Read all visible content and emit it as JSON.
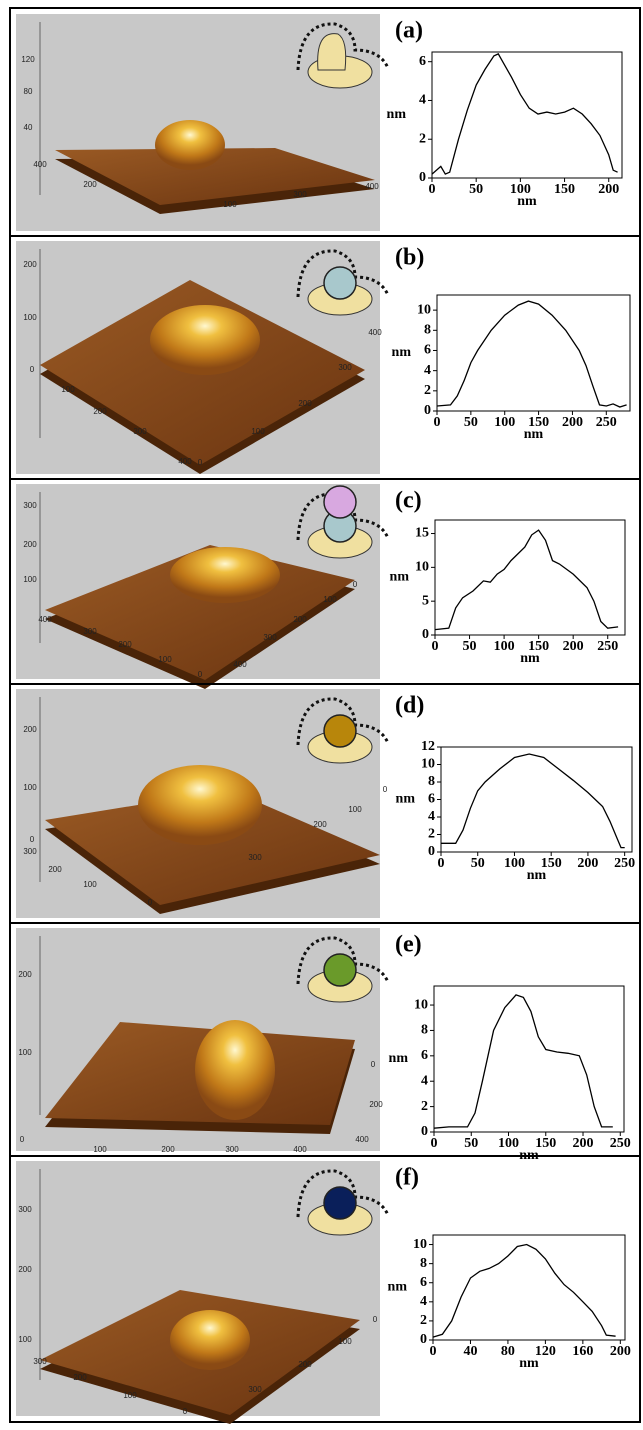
{
  "chart_data": [
    {
      "type": "line",
      "label": "(a)",
      "x_label": "nm",
      "y_label": "nm",
      "color": "#000000",
      "x": [
        0,
        10,
        15,
        20,
        30,
        40,
        50,
        60,
        70,
        75,
        80,
        90,
        100,
        110,
        120,
        130,
        140,
        150,
        160,
        170,
        180,
        190,
        200,
        205,
        210
      ],
      "values": [
        0.2,
        0.6,
        0.2,
        0.3,
        2,
        3.5,
        4.8,
        5.6,
        6.3,
        6.4,
        6.0,
        5.2,
        4.3,
        3.6,
        3.3,
        3.4,
        3.3,
        3.4,
        3.6,
        3.3,
        2.8,
        2.2,
        1.2,
        0.4,
        0.3
      ],
      "xlim": [
        0,
        215
      ],
      "ylim": [
        0,
        6.5
      ],
      "xticks": [
        0,
        50,
        100,
        150,
        200
      ],
      "yticks": [
        0,
        2,
        4,
        6
      ]
    },
    {
      "type": "line",
      "label": "(b)",
      "x_label": "nm",
      "y_label": "nm",
      "color": "#000000",
      "x": [
        0,
        20,
        30,
        40,
        50,
        60,
        80,
        100,
        120,
        135,
        150,
        170,
        190,
        210,
        220,
        230,
        240,
        250,
        260,
        270,
        280
      ],
      "values": [
        0.5,
        0.6,
        1.5,
        3,
        4.8,
        6,
        8,
        9.5,
        10.5,
        10.9,
        10.6,
        9.5,
        8,
        6,
        4.5,
        2.5,
        0.6,
        0.5,
        0.7,
        0.4,
        0.6
      ],
      "xlim": [
        0,
        285
      ],
      "ylim": [
        0,
        11.5
      ],
      "xticks": [
        0,
        50,
        100,
        150,
        200,
        250
      ],
      "yticks": [
        0,
        2,
        4,
        6,
        8,
        10
      ]
    },
    {
      "type": "line",
      "label": "(c)",
      "x_label": "nm",
      "y_label": "nm",
      "color": "#000000",
      "x": [
        0,
        20,
        30,
        40,
        55,
        70,
        80,
        90,
        100,
        110,
        130,
        140,
        150,
        160,
        170,
        180,
        200,
        220,
        230,
        240,
        250,
        265
      ],
      "values": [
        0.8,
        1,
        4,
        5.5,
        6.5,
        8,
        7.8,
        9,
        9.7,
        11,
        13,
        14.8,
        15.5,
        14,
        11,
        10.5,
        9,
        7,
        5,
        2,
        1,
        1.2
      ],
      "xlim": [
        0,
        275
      ],
      "ylim": [
        0,
        17
      ],
      "xticks": [
        0,
        50,
        100,
        150,
        200,
        250
      ],
      "yticks": [
        0,
        5,
        10,
        15
      ]
    },
    {
      "type": "line",
      "label": "(d)",
      "x_label": "nm",
      "y_label": "nm",
      "color": "#000000",
      "x": [
        0,
        20,
        30,
        40,
        50,
        60,
        80,
        100,
        120,
        140,
        160,
        180,
        200,
        220,
        230,
        240,
        245,
        250
      ],
      "values": [
        1,
        1,
        2.5,
        5,
        7,
        8,
        9.5,
        10.8,
        11.2,
        10.8,
        9.5,
        8.2,
        6.8,
        5.2,
        3.5,
        1.5,
        0.5,
        0.5
      ],
      "xlim": [
        0,
        260
      ],
      "ylim": [
        0,
        12
      ],
      "xticks": [
        0,
        50,
        100,
        150,
        200,
        250
      ],
      "yticks": [
        0,
        2,
        4,
        6,
        8,
        10,
        12
      ]
    },
    {
      "type": "line",
      "label": "(e)",
      "x_label": "nm",
      "y_label": "nm",
      "color": "#000000",
      "x": [
        0,
        20,
        45,
        55,
        65,
        80,
        95,
        110,
        120,
        130,
        140,
        150,
        165,
        180,
        195,
        205,
        215,
        225,
        240
      ],
      "values": [
        0.3,
        0.4,
        0.4,
        1.5,
        4,
        8,
        9.8,
        10.8,
        10.6,
        9.5,
        7.5,
        6.5,
        6.3,
        6.2,
        6,
        4.5,
        2,
        0.4,
        0.4
      ],
      "xlim": [
        0,
        255
      ],
      "ylim": [
        0,
        11.5
      ],
      "xticks": [
        0,
        50,
        100,
        150,
        200,
        250
      ],
      "yticks": [
        0,
        2,
        4,
        6,
        8,
        10
      ]
    },
    {
      "type": "line",
      "label": "(f)",
      "x_label": "nm",
      "y_label": "nm",
      "color": "#000000",
      "x": [
        0,
        10,
        20,
        30,
        40,
        50,
        60,
        70,
        80,
        90,
        100,
        110,
        120,
        130,
        140,
        150,
        160,
        170,
        180,
        185,
        195
      ],
      "values": [
        0.3,
        0.6,
        2,
        4.5,
        6.5,
        7.2,
        7.5,
        8,
        8.8,
        9.8,
        10,
        9.5,
        8.5,
        7,
        5.8,
        5,
        4,
        3,
        1.5,
        0.5,
        0.4
      ],
      "xlim": [
        0,
        205
      ],
      "ylim": [
        0,
        11
      ],
      "xticks": [
        0,
        40,
        80,
        120,
        160,
        200
      ],
      "yticks": [
        0,
        2,
        4,
        6,
        8,
        10
      ]
    }
  ],
  "afm_images": [
    {
      "labels": [
        "120",
        "80",
        "40",
        "400",
        "200",
        "100",
        "300",
        "400"
      ]
    },
    {
      "labels": [
        "200",
        "100",
        "0",
        "100",
        "200",
        "300",
        "400",
        "0",
        "100",
        "200",
        "300",
        "400"
      ]
    },
    {
      "labels": [
        "300",
        "200",
        "100",
        "400",
        "300",
        "200",
        "100",
        "0",
        "400",
        "300",
        "200",
        "100",
        "0"
      ]
    },
    {
      "labels": [
        "200",
        "100",
        "0",
        "300",
        "200",
        "100",
        "0",
        "300",
        "200",
        "100",
        "0"
      ]
    },
    {
      "labels": [
        "200",
        "100",
        "0",
        "100",
        "200",
        "300",
        "400",
        "0",
        "200",
        "400"
      ]
    },
    {
      "labels": [
        "300",
        "200",
        "100",
        "300",
        "200",
        "100",
        "0",
        "300",
        "200",
        "100",
        "0"
      ]
    }
  ]
}
